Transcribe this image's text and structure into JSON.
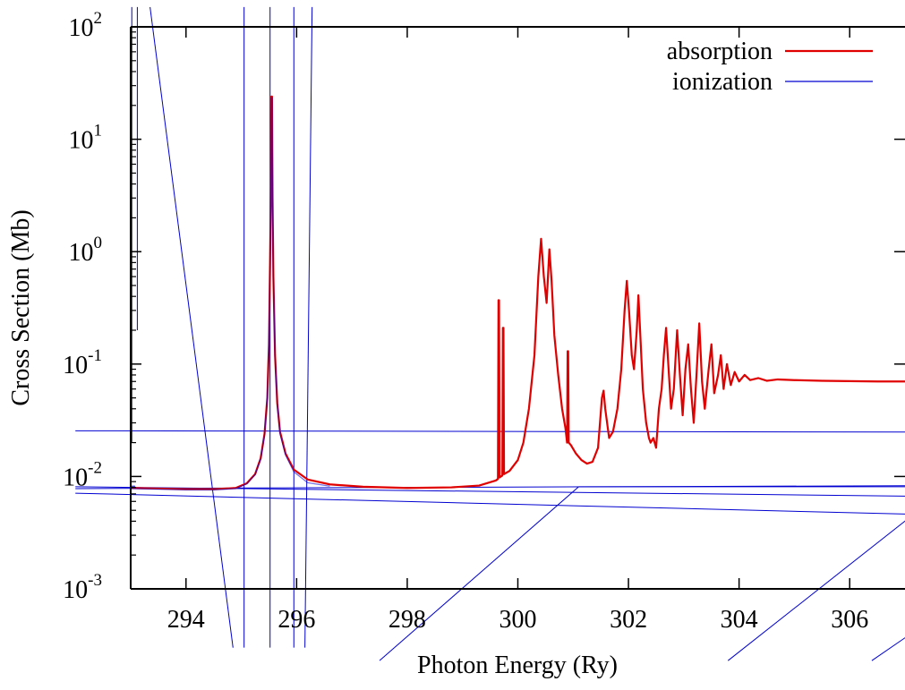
{
  "chart_data": {
    "type": "line",
    "xlabel": "Photon Energy (Ry)",
    "ylabel": "Cross Section (Mb)",
    "xlim": [
      293,
      307
    ],
    "ylim": [
      0.001,
      100
    ],
    "yscale": "log",
    "x_ticks": [
      294,
      296,
      298,
      300,
      302,
      304,
      306
    ],
    "x_tick_labels": [
      "294",
      "296",
      "298",
      "300",
      "302",
      "304",
      "306"
    ],
    "y_ticks": [
      {
        "base": "10",
        "exp": "-3",
        "value": 0.001
      },
      {
        "base": "10",
        "exp": "-2",
        "value": 0.01
      },
      {
        "base": "10",
        "exp": "-1",
        "value": 0.1
      },
      {
        "base": "10",
        "exp": "0",
        "value": 1
      },
      {
        "base": "10",
        "exp": "1",
        "value": 10
      },
      {
        "base": "10",
        "exp": "2",
        "value": 100
      }
    ],
    "grid": false,
    "legend_position": "top-right",
    "series": [
      {
        "name": "absorption",
        "color": "#e00000",
        "points": [
          [
            293.0,
            0.0079
          ],
          [
            293.5,
            0.0078
          ],
          [
            294.0,
            0.0077
          ],
          [
            294.5,
            0.0077
          ],
          [
            294.9,
            0.0079
          ],
          [
            295.1,
            0.0087
          ],
          [
            295.25,
            0.0105
          ],
          [
            295.35,
            0.0145
          ],
          [
            295.42,
            0.024
          ],
          [
            295.47,
            0.05
          ],
          [
            295.5,
            0.15
          ],
          [
            295.52,
            0.8
          ],
          [
            295.535,
            4.0
          ],
          [
            295.545,
            24.0
          ],
          [
            295.555,
            24.0
          ],
          [
            295.565,
            3.0
          ],
          [
            295.58,
            0.6
          ],
          [
            295.61,
            0.12
          ],
          [
            295.65,
            0.045
          ],
          [
            295.7,
            0.025
          ],
          [
            295.8,
            0.016
          ],
          [
            295.95,
            0.0115
          ],
          [
            296.2,
            0.0094
          ],
          [
            296.6,
            0.0085
          ],
          [
            297.2,
            0.0081
          ],
          [
            298.0,
            0.0079
          ],
          [
            298.8,
            0.008
          ],
          [
            299.3,
            0.0083
          ],
          [
            299.6,
            0.0092
          ],
          [
            299.64,
            0.0095
          ],
          [
            299.65,
            0.37
          ],
          [
            299.66,
            0.37
          ],
          [
            299.67,
            0.0098
          ],
          [
            299.72,
            0.0102
          ],
          [
            299.73,
            0.21
          ],
          [
            299.74,
            0.21
          ],
          [
            299.75,
            0.0105
          ],
          [
            299.85,
            0.0112
          ],
          [
            300.0,
            0.014
          ],
          [
            300.1,
            0.02
          ],
          [
            300.2,
            0.04
          ],
          [
            300.3,
            0.12
          ],
          [
            300.37,
            0.6
          ],
          [
            300.42,
            1.3
          ],
          [
            300.47,
            0.6
          ],
          [
            300.52,
            0.35
          ],
          [
            300.57,
            1.05
          ],
          [
            300.61,
            0.55
          ],
          [
            300.66,
            0.18
          ],
          [
            300.73,
            0.08
          ],
          [
            300.8,
            0.04
          ],
          [
            300.86,
            0.027
          ],
          [
            300.89,
            0.02
          ],
          [
            300.9,
            0.13
          ],
          [
            300.91,
            0.13
          ],
          [
            300.92,
            0.02
          ],
          [
            300.96,
            0.019
          ],
          [
            301.05,
            0.016
          ],
          [
            301.15,
            0.014
          ],
          [
            301.25,
            0.013
          ],
          [
            301.35,
            0.0135
          ],
          [
            301.45,
            0.018
          ],
          [
            301.52,
            0.05
          ],
          [
            301.55,
            0.058
          ],
          [
            301.58,
            0.04
          ],
          [
            301.65,
            0.022
          ],
          [
            301.72,
            0.025
          ],
          [
            301.8,
            0.04
          ],
          [
            301.87,
            0.09
          ],
          [
            301.93,
            0.3
          ],
          [
            301.97,
            0.55
          ],
          [
            302.01,
            0.3
          ],
          [
            302.06,
            0.12
          ],
          [
            302.1,
            0.09
          ],
          [
            302.15,
            0.2
          ],
          [
            302.18,
            0.41
          ],
          [
            302.21,
            0.2
          ],
          [
            302.26,
            0.06
          ],
          [
            302.32,
            0.03
          ],
          [
            302.37,
            0.022
          ],
          [
            302.4,
            0.02
          ],
          [
            302.45,
            0.022
          ],
          [
            302.5,
            0.018
          ],
          [
            302.55,
            0.04
          ],
          [
            302.6,
            0.06
          ],
          [
            302.64,
            0.12
          ],
          [
            302.68,
            0.21
          ],
          [
            302.72,
            0.1
          ],
          [
            302.77,
            0.04
          ],
          [
            302.82,
            0.06
          ],
          [
            302.88,
            0.2
          ],
          [
            302.93,
            0.08
          ],
          [
            302.98,
            0.035
          ],
          [
            303.03,
            0.09
          ],
          [
            303.08,
            0.15
          ],
          [
            303.13,
            0.06
          ],
          [
            303.18,
            0.03
          ],
          [
            303.23,
            0.08
          ],
          [
            303.28,
            0.23
          ],
          [
            303.33,
            0.07
          ],
          [
            303.38,
            0.04
          ],
          [
            303.45,
            0.09
          ],
          [
            303.5,
            0.15
          ],
          [
            303.55,
            0.055
          ],
          [
            303.62,
            0.08
          ],
          [
            303.67,
            0.12
          ],
          [
            303.72,
            0.06
          ],
          [
            303.78,
            0.1
          ],
          [
            303.85,
            0.065
          ],
          [
            303.92,
            0.085
          ],
          [
            304.0,
            0.07
          ],
          [
            304.1,
            0.08
          ],
          [
            304.2,
            0.072
          ],
          [
            304.35,
            0.075
          ],
          [
            304.5,
            0.071
          ],
          [
            304.7,
            0.073
          ],
          [
            305.0,
            0.072
          ],
          [
            305.5,
            0.071
          ],
          [
            306.0,
            0.0705
          ],
          [
            306.5,
            0.07
          ],
          [
            307.0,
            0.07
          ]
        ]
      },
      {
        "name": "ionization",
        "color": "#0000d0",
        "points": [
          [
            293.0,
            0.0078
          ],
          [
            293.5,
            0.0077
          ],
          [
            294.0,
            0.0076
          ],
          [
            294.5,
            0.0076
          ],
          [
            294.9,
            0.0078
          ],
          [
            295.1,
            0.0086
          ],
          [
            295.25,
            0.0104
          ],
          [
            295.35,
            0.0143
          ],
          [
            295.42,
            0.0235
          ],
          [
            295.47,
            0.049
          ],
          [
            295.5,
            0.145
          ],
          [
            295.52,
            0.78
          ],
          [
            295.535,
            3.9
          ],
          [
            295.545,
            23.5
          ],
          [
            295.555,
            23.5
          ],
          [
            295.565,
            2.9
          ],
          [
            295.58,
            0.58
          ],
          [
            295.61,
            0.115
          ],
          [
            295.65,
            0.044
          ],
          [
            295.7,
            0.024
          ],
          [
            295.8,
            0.0155
          ],
          [
            295.95,
            0.011
          ],
          [
            296.2,
            0.0088
          ],
          [
            296.6,
            0.0082
          ]
        ],
        "artifact_lines": [
          [
            [
              293.12,
              0.2
            ],
            [
              293.12,
              150
            ]
          ],
          [
            [
              293.02,
              0.02
            ],
            [
              293.02,
              150
            ]
          ],
          [
            [
              293.0,
              0.0082
            ],
            [
              293.08,
              0.0082
            ]
          ],
          [
            [
              293.35,
              150
            ],
            [
              294.85,
              0.0003
            ]
          ],
          [
            [
              295.52,
              150
            ],
            [
              295.52,
              0.0003
            ]
          ],
          [
            [
              295.95,
              150
            ],
            [
              295.95,
              0.0003
            ]
          ],
          [
            [
              296.28,
              150
            ],
            [
              296.15,
              0.0003
            ]
          ],
          [
            [
              295.05,
              150
            ],
            [
              295.05,
              0.0003
            ]
          ],
          [
            [
              292.0,
              0.0255
            ],
            [
              308.0,
              0.0248
            ]
          ],
          [
            [
              292.0,
              0.0071
            ],
            [
              308.0,
              0.0045
            ]
          ],
          [
            [
              292.0,
              0.0078
            ],
            [
              308.0,
              0.0083
            ]
          ],
          [
            [
              292.0,
              0.0081
            ],
            [
              308.0,
              0.0066
            ]
          ],
          [
            [
              297.5,
              0.00023
            ],
            [
              301.1,
              0.0081
            ]
          ],
          [
            [
              301.1,
              0.0081
            ],
            [
              308.0,
              0.0081
            ]
          ],
          [
            [
              303.8,
              0.00023
            ],
            [
              308.0,
              0.0098
            ]
          ],
          [
            [
              306.4,
              0.00023
            ],
            [
              308.0,
              0.0008
            ]
          ]
        ]
      }
    ]
  }
}
